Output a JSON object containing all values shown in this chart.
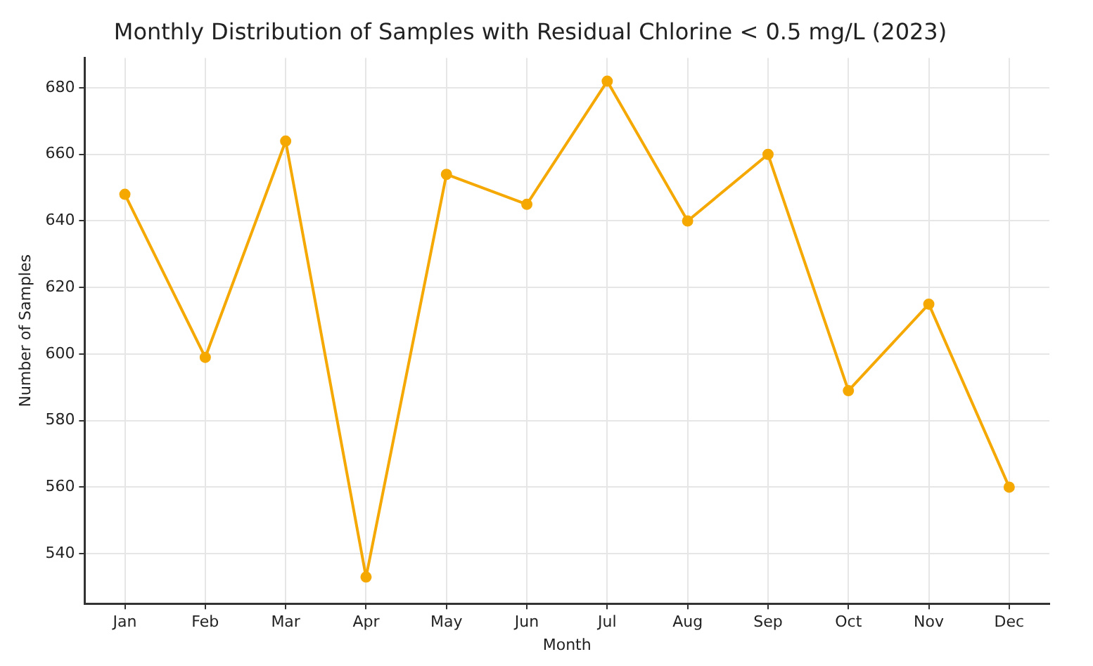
{
  "chart_data": {
    "type": "line",
    "title": "Monthly Distribution of Samples with Residual Chlorine < 0.5 mg/L (2023)",
    "xlabel": "Month",
    "ylabel": "Number of Samples",
    "categories": [
      "Jan",
      "Feb",
      "Mar",
      "Apr",
      "May",
      "Jun",
      "Jul",
      "Aug",
      "Sep",
      "Oct",
      "Nov",
      "Dec"
    ],
    "series": [
      {
        "color": "#f5a800",
        "values": [
          648,
          599,
          664,
          533,
          654,
          645,
          682,
          640,
          660,
          589,
          615,
          560
        ]
      }
    ],
    "ylim": [
      525,
      689
    ],
    "yticks": [
      540,
      560,
      580,
      600,
      620,
      640,
      660,
      680
    ],
    "grid": true,
    "marker": "circle",
    "line_style": "solid",
    "legend": false
  }
}
